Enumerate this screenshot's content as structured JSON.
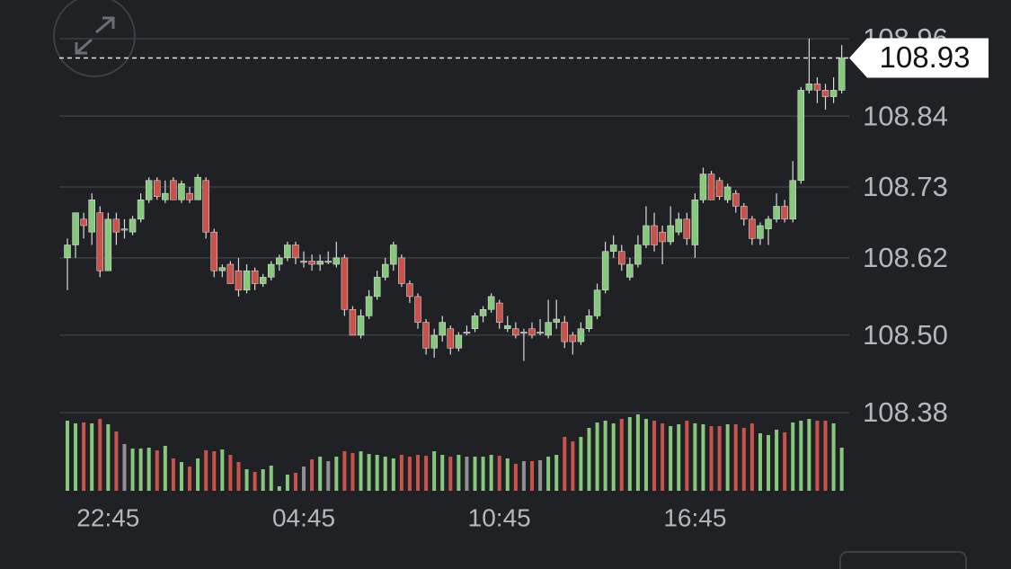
{
  "chart_data": {
    "type": "candlestick",
    "categories": [
      null,
      null,
      null,
      null,
      null,
      "22:45",
      null,
      null,
      null,
      null,
      null,
      null,
      null,
      null,
      null,
      null,
      null,
      null,
      null,
      null,
      null,
      null,
      null,
      null,
      null,
      null,
      null,
      null,
      null,
      "04:45",
      null,
      null,
      null,
      null,
      null,
      null,
      null,
      null,
      null,
      null,
      null,
      null,
      null,
      null,
      null,
      null,
      null,
      null,
      null,
      null,
      null,
      null,
      null,
      "10:45",
      null,
      null,
      null,
      null,
      null,
      null,
      null,
      null,
      null,
      null,
      null,
      null,
      null,
      null,
      null,
      null,
      null,
      null,
      null,
      null,
      null,
      null,
      null,
      "16:45",
      null,
      null,
      null,
      null,
      null,
      null,
      null,
      null,
      null,
      null,
      null,
      null,
      null,
      null,
      null,
      null,
      null,
      null
    ],
    "open": [
      108.62,
      108.64,
      108.68,
      108.66,
      108.69,
      108.6,
      108.68,
      108.665,
      108.66,
      108.68,
      108.71,
      108.74,
      108.71,
      108.74,
      108.71,
      108.72,
      108.71,
      108.74,
      108.66,
      108.6,
      108.61,
      108.6,
      108.57,
      108.6,
      108.58,
      108.59,
      108.61,
      108.62,
      108.64,
      108.615,
      108.615,
      108.61,
      108.615,
      108.61,
      108.62,
      108.54,
      108.5,
      108.53,
      108.56,
      108.59,
      108.61,
      108.62,
      108.58,
      108.56,
      108.52,
      108.48,
      108.5,
      108.51,
      108.48,
      108.505,
      108.51,
      108.53,
      108.54,
      108.55,
      108.51,
      108.51,
      108.505,
      108.51,
      108.505,
      108.5,
      108.52,
      108.52,
      108.5,
      108.49,
      108.51,
      108.53,
      108.57,
      108.63,
      108.63,
      108.59,
      108.61,
      108.64,
      108.67,
      108.66,
      108.645,
      108.66,
      108.68,
      108.64,
      108.71,
      108.75,
      108.74,
      108.71,
      108.72,
      108.7,
      108.68,
      108.65,
      108.665,
      108.68,
      108.7,
      108.68,
      108.74,
      108.88,
      108.89,
      108.88,
      108.87,
      108.88
    ],
    "high": [
      108.65,
      108.69,
      108.69,
      108.72,
      108.7,
      108.69,
      108.69,
      108.68,
      108.685,
      108.72,
      108.745,
      108.745,
      108.74,
      108.745,
      108.74,
      108.73,
      108.75,
      108.745,
      108.665,
      108.61,
      108.615,
      108.62,
      108.61,
      108.605,
      108.595,
      108.615,
      108.625,
      108.645,
      108.645,
      108.63,
      108.625,
      108.625,
      108.63,
      108.645,
      108.625,
      108.545,
      108.54,
      108.57,
      108.6,
      108.62,
      108.645,
      108.625,
      108.585,
      108.565,
      108.525,
      108.51,
      108.53,
      108.515,
      108.505,
      108.515,
      108.535,
      108.545,
      108.565,
      108.555,
      108.53,
      108.52,
      108.51,
      108.52,
      108.525,
      108.555,
      108.555,
      108.53,
      108.505,
      108.52,
      108.54,
      108.58,
      108.645,
      108.655,
      108.64,
      108.62,
      108.655,
      108.7,
      108.69,
      108.67,
      108.7,
      108.69,
      108.69,
      108.72,
      108.76,
      108.755,
      108.745,
      108.735,
      108.725,
      108.705,
      108.685,
      108.675,
      108.685,
      108.72,
      108.71,
      108.77,
      108.885,
      108.96,
      108.9,
      108.89,
      108.9,
      108.95
    ],
    "low": [
      108.57,
      108.62,
      108.65,
      108.64,
      108.59,
      108.6,
      108.64,
      108.65,
      108.655,
      108.675,
      108.705,
      108.71,
      108.705,
      108.71,
      108.705,
      108.705,
      108.71,
      108.65,
      108.59,
      108.59,
      108.58,
      108.56,
      108.565,
      108.57,
      108.575,
      108.585,
      108.6,
      108.615,
      108.61,
      108.605,
      108.6,
      108.6,
      108.61,
      108.605,
      108.53,
      108.5,
      108.495,
      108.525,
      108.555,
      108.585,
      108.6,
      108.575,
      108.55,
      108.51,
      108.47,
      108.465,
      108.49,
      108.47,
      108.475,
      108.5,
      108.505,
      108.52,
      108.535,
      108.51,
      108.505,
      108.495,
      108.46,
      108.495,
      108.5,
      108.495,
      108.51,
      108.48,
      108.47,
      108.485,
      108.505,
      108.525,
      108.565,
      108.62,
      108.6,
      108.585,
      108.605,
      108.635,
      108.63,
      108.61,
      108.64,
      108.655,
      108.64,
      108.62,
      108.705,
      108.71,
      108.71,
      108.705,
      108.69,
      108.67,
      108.64,
      108.64,
      108.64,
      108.675,
      108.675,
      108.675,
      108.735,
      108.875,
      108.86,
      108.85,
      108.86,
      108.875
    ],
    "close": [
      108.64,
      108.69,
      108.67,
      108.71,
      108.6,
      108.68,
      108.66,
      108.665,
      108.68,
      108.71,
      108.74,
      108.715,
      108.72,
      108.71,
      108.735,
      108.71,
      108.745,
      108.66,
      108.6,
      108.605,
      108.58,
      108.57,
      108.6,
      108.58,
      108.59,
      108.61,
      108.62,
      108.64,
      108.62,
      108.615,
      108.61,
      108.615,
      108.615,
      108.62,
      108.54,
      108.5,
      108.53,
      108.56,
      108.59,
      108.61,
      108.64,
      108.58,
      108.56,
      108.52,
      108.48,
      108.5,
      108.52,
      108.48,
      108.5,
      108.505,
      108.53,
      108.54,
      108.56,
      108.52,
      108.515,
      108.5,
      108.505,
      108.5,
      108.505,
      108.52,
      108.525,
      108.49,
      108.49,
      108.51,
      108.53,
      108.57,
      108.63,
      108.64,
      108.61,
      108.61,
      108.64,
      108.67,
      108.64,
      108.645,
      108.67,
      108.68,
      108.65,
      108.71,
      108.75,
      108.71,
      108.715,
      108.73,
      108.7,
      108.68,
      108.65,
      108.67,
      108.68,
      108.7,
      108.68,
      108.74,
      108.88,
      108.89,
      108.88,
      108.87,
      108.88,
      108.93
    ],
    "volume": [
      78,
      75,
      76,
      75,
      80,
      74,
      66,
      52,
      47,
      47,
      48,
      45,
      50,
      36,
      32,
      27,
      36,
      45,
      44,
      46,
      40,
      32,
      24,
      21,
      24,
      28,
      5,
      18,
      20,
      27,
      35,
      38,
      33,
      38,
      44,
      42,
      44,
      41,
      40,
      38,
      36,
      40,
      38,
      40,
      39,
      44,
      40,
      38,
      40,
      38,
      38,
      38,
      40,
      39,
      36,
      30,
      33,
      33,
      34,
      38,
      40,
      60,
      55,
      60,
      70,
      76,
      78,
      75,
      80,
      82,
      85,
      80,
      78,
      75,
      72,
      74,
      78,
      75,
      74,
      72,
      72,
      74,
      74,
      70,
      75,
      64,
      62,
      68,
      65,
      76,
      78,
      80,
      78,
      78,
      75,
      48
    ],
    "up_color": "#86c97c",
    "down_color": "#c9534b",
    "flat_color": "#8e9094",
    "ylim": [
      108.38,
      108.96
    ],
    "yticks": [
      108.38,
      {
        "value": 108.5,
        "label": "108.50"
      },
      108.62,
      108.73,
      108.84,
      108.96
    ],
    "vlim": [
      0,
      100
    ],
    "last_price": 108.93,
    "grid": true
  }
}
